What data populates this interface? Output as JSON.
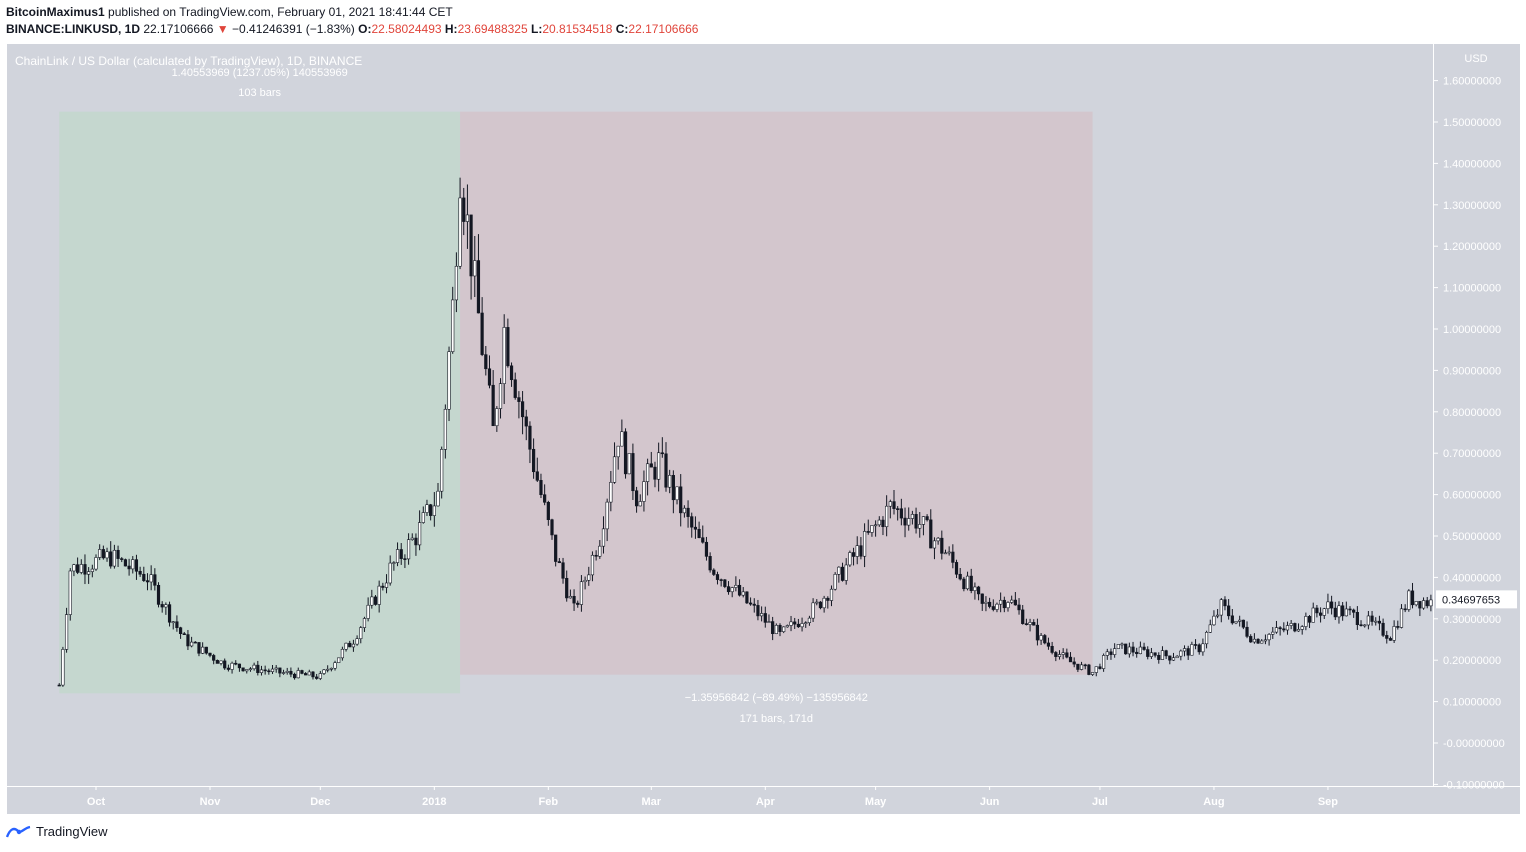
{
  "header": {
    "author": "BitcoinMaximus1",
    "published": "published on TradingView.com, February 01, 2021 18:41:44 CET",
    "symbol": "BINANCE:LINKUSD, 1D",
    "last": "22.17106666",
    "arrow": "▼",
    "change": "−0.41246391 (−1.83%)",
    "o_label": "O:",
    "o": "22.58024493",
    "h_label": "H:",
    "h": "23.69488325",
    "l_label": "L:",
    "l": "20.81534518",
    "c_label": "C:",
    "c": "22.17106666"
  },
  "footer": {
    "brand": "TradingView"
  },
  "colors": {
    "plot_bg": "#d1d4dc",
    "green_zone": "#c5d7cf",
    "red_zone": "#d3c6cd",
    "candle": "#131722",
    "axis_text": "#ffffff"
  },
  "chart_data": {
    "type": "candlestick",
    "title": "ChainLink / US Dollar (calculated by TradingView), 1D, BINANCE",
    "currency_label": "USD",
    "ylim": [
      -0.1,
      1.65
    ],
    "y_ticks": [
      "1.60000000",
      "1.50000000",
      "1.40000000",
      "1.30000000",
      "1.20000000",
      "1.10000000",
      "1.00000000",
      "0.90000000",
      "0.80000000",
      "0.70000000",
      "0.60000000",
      "0.50000000",
      "0.40000000",
      "0.30000000",
      "0.20000000",
      "0.10000000",
      "-0.00000000",
      "-0.10000000"
    ],
    "y_tick_values": [
      1.6,
      1.5,
      1.4,
      1.3,
      1.2,
      1.1,
      1.0,
      0.9,
      0.8,
      0.7,
      0.6,
      0.5,
      0.4,
      0.3,
      0.2,
      0.1,
      0.0,
      -0.1
    ],
    "x_ticks": [
      {
        "label": "Oct",
        "date": "2017-10-01"
      },
      {
        "label": "Nov",
        "date": "2017-11-01"
      },
      {
        "label": "Dec",
        "date": "2017-12-01"
      },
      {
        "label": "2018",
        "date": "2018-01-01"
      },
      {
        "label": "Feb",
        "date": "2018-02-01"
      },
      {
        "label": "Mar",
        "date": "2018-03-01"
      },
      {
        "label": "Apr",
        "date": "2018-04-01"
      },
      {
        "label": "May",
        "date": "2018-05-01"
      },
      {
        "label": "Jun",
        "date": "2018-06-01"
      },
      {
        "label": "Jul",
        "date": "2018-07-01"
      },
      {
        "label": "Aug",
        "date": "2018-08-01"
      },
      {
        "label": "Sep",
        "date": "2018-09-01"
      }
    ],
    "start_date": "2017-09-21",
    "end_date": "2018-09-29",
    "current_price": "0.34697653",
    "current_value": 0.34697653,
    "anchors": [
      {
        "date": "2017-09-21",
        "value": 0.14
      },
      {
        "date": "2017-09-24",
        "value": 0.42
      },
      {
        "date": "2017-10-05",
        "value": 0.45
      },
      {
        "date": "2017-10-15",
        "value": 0.4
      },
      {
        "date": "2017-10-25",
        "value": 0.25
      },
      {
        "date": "2017-11-05",
        "value": 0.19
      },
      {
        "date": "2017-11-20",
        "value": 0.17
      },
      {
        "date": "2017-12-01",
        "value": 0.16
      },
      {
        "date": "2017-12-10",
        "value": 0.25
      },
      {
        "date": "2017-12-20",
        "value": 0.42
      },
      {
        "date": "2017-12-27",
        "value": 0.5
      },
      {
        "date": "2018-01-02",
        "value": 0.6
      },
      {
        "date": "2018-01-06",
        "value": 1.05
      },
      {
        "date": "2018-01-08",
        "value": 1.4
      },
      {
        "date": "2018-01-12",
        "value": 1.1
      },
      {
        "date": "2018-01-17",
        "value": 0.75
      },
      {
        "date": "2018-01-20",
        "value": 1.0
      },
      {
        "date": "2018-01-26",
        "value": 0.75
      },
      {
        "date": "2018-02-03",
        "value": 0.45
      },
      {
        "date": "2018-02-08",
        "value": 0.32
      },
      {
        "date": "2018-02-15",
        "value": 0.5
      },
      {
        "date": "2018-02-20",
        "value": 0.75
      },
      {
        "date": "2018-02-25",
        "value": 0.6
      },
      {
        "date": "2018-03-03",
        "value": 0.68
      },
      {
        "date": "2018-03-10",
        "value": 0.55
      },
      {
        "date": "2018-03-18",
        "value": 0.42
      },
      {
        "date": "2018-03-28",
        "value": 0.33
      },
      {
        "date": "2018-04-05",
        "value": 0.26
      },
      {
        "date": "2018-04-15",
        "value": 0.33
      },
      {
        "date": "2018-04-25",
        "value": 0.45
      },
      {
        "date": "2018-05-05",
        "value": 0.57
      },
      {
        "date": "2018-05-12",
        "value": 0.54
      },
      {
        "date": "2018-05-20",
        "value": 0.46
      },
      {
        "date": "2018-05-30",
        "value": 0.33
      },
      {
        "date": "2018-06-06",
        "value": 0.35
      },
      {
        "date": "2018-06-15",
        "value": 0.25
      },
      {
        "date": "2018-06-22",
        "value": 0.2
      },
      {
        "date": "2018-06-29",
        "value": 0.17
      },
      {
        "date": "2018-07-05",
        "value": 0.23
      },
      {
        "date": "2018-07-20",
        "value": 0.21
      },
      {
        "date": "2018-07-28",
        "value": 0.23
      },
      {
        "date": "2018-08-03",
        "value": 0.33
      },
      {
        "date": "2018-08-12",
        "value": 0.25
      },
      {
        "date": "2018-08-22",
        "value": 0.28
      },
      {
        "date": "2018-09-01",
        "value": 0.33
      },
      {
        "date": "2018-09-10",
        "value": 0.3
      },
      {
        "date": "2018-09-18",
        "value": 0.26
      },
      {
        "date": "2018-09-23",
        "value": 0.35
      },
      {
        "date": "2018-09-29",
        "value": 0.34
      }
    ],
    "annotations": [
      {
        "name": "rise-range",
        "start_date": "2017-09-21",
        "end_date": "2018-01-08",
        "low": 0.12,
        "high": 1.525,
        "label1": "1.40553969 (1237.05%) 140553969",
        "label2": "103 bars"
      },
      {
        "name": "fall-range",
        "start_date": "2018-01-08",
        "end_date": "2018-06-29",
        "low": 0.165,
        "high": 1.525,
        "label1": "−1.35956842 (−89.49%) −135956842",
        "label2": "171 bars, 171d"
      }
    ]
  }
}
